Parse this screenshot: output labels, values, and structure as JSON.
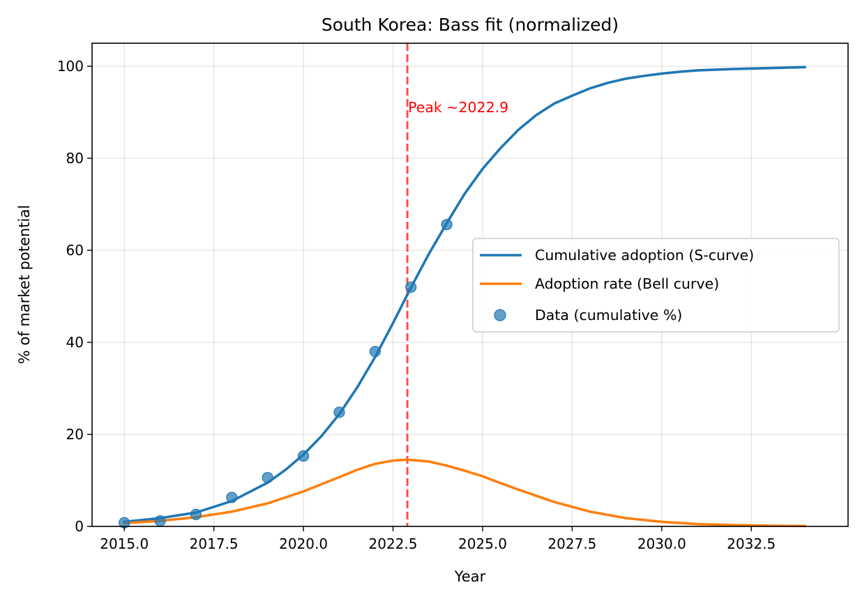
{
  "chart_data": {
    "type": "line",
    "title": "South Korea: Bass fit (normalized)",
    "xlabel": "Year",
    "ylabel": "% of market potential",
    "xlim": [
      2014.1,
      2035.2
    ],
    "ylim": [
      0,
      105
    ],
    "x_ticks": [
      2015.0,
      2017.5,
      2020.0,
      2022.5,
      2025.0,
      2027.5,
      2030.0,
      2032.5
    ],
    "x_tick_labels": [
      "2015.0",
      "2017.5",
      "2020.0",
      "2022.5",
      "2025.0",
      "2027.5",
      "2030.0",
      "2032.5"
    ],
    "y_ticks": [
      0,
      20,
      40,
      60,
      80,
      100
    ],
    "y_tick_labels": [
      "0",
      "20",
      "40",
      "60",
      "80",
      "100"
    ],
    "grid": true,
    "legend_position": "center-right",
    "series": [
      {
        "name": "Cumulative adoption (S-curve)",
        "kind": "line",
        "color": "#1f77b4",
        "x": [
          2015.0,
          2016.0,
          2017.0,
          2018.0,
          2019.0,
          2019.5,
          2020.0,
          2020.5,
          2021.0,
          2021.5,
          2022.0,
          2022.5,
          2023.0,
          2023.5,
          2024.0,
          2024.5,
          2025.0,
          2025.5,
          2026.0,
          2026.5,
          2027.0,
          2027.5,
          2028.0,
          2028.5,
          2029.0,
          2029.5,
          2030.0,
          2030.5,
          2031.0,
          2032.0,
          2033.0,
          2034.0
        ],
        "y": [
          1.0,
          1.8,
          3.0,
          5.5,
          9.5,
          12.3,
          15.6,
          19.6,
          24.4,
          30.2,
          36.8,
          44.2,
          51.9,
          59.2,
          65.9,
          72.3,
          77.7,
          82.2,
          86.2,
          89.4,
          91.9,
          93.6,
          95.2,
          96.4,
          97.3,
          97.9,
          98.4,
          98.8,
          99.1,
          99.4,
          99.6,
          99.8
        ]
      },
      {
        "name": "Adoption rate (Bell curve)",
        "kind": "line",
        "color": "#ff7f0e",
        "x": [
          2015.0,
          2016.0,
          2017.0,
          2018.0,
          2019.0,
          2020.0,
          2021.0,
          2021.5,
          2022.0,
          2022.5,
          2022.9,
          2023.5,
          2024.0,
          2024.5,
          2025.0,
          2025.5,
          2026.0,
          2027.0,
          2028.0,
          2029.0,
          2030.0,
          2031.0,
          2032.0,
          2033.0,
          2034.0
        ],
        "y": [
          0.7,
          1.2,
          2.0,
          3.2,
          5.0,
          7.6,
          10.7,
          12.3,
          13.6,
          14.3,
          14.5,
          14.1,
          13.2,
          12.1,
          10.9,
          9.4,
          8.0,
          5.3,
          3.2,
          1.8,
          1.0,
          0.5,
          0.3,
          0.15,
          0.08
        ]
      },
      {
        "name": "Data (cumulative %)",
        "kind": "scatter",
        "color": "#1f77b4",
        "x": [
          2015,
          2016,
          2017,
          2018,
          2019,
          2020,
          2021,
          2022,
          2023,
          2024
        ],
        "y": [
          0.8,
          1.2,
          2.6,
          6.3,
          10.6,
          15.3,
          24.8,
          38.0,
          52.0,
          65.6
        ]
      }
    ],
    "annotations": [
      {
        "type": "vline",
        "x": 2022.9,
        "color": "#ff0000",
        "style": "dashed",
        "label": "Peak ~2022.9"
      }
    ]
  }
}
